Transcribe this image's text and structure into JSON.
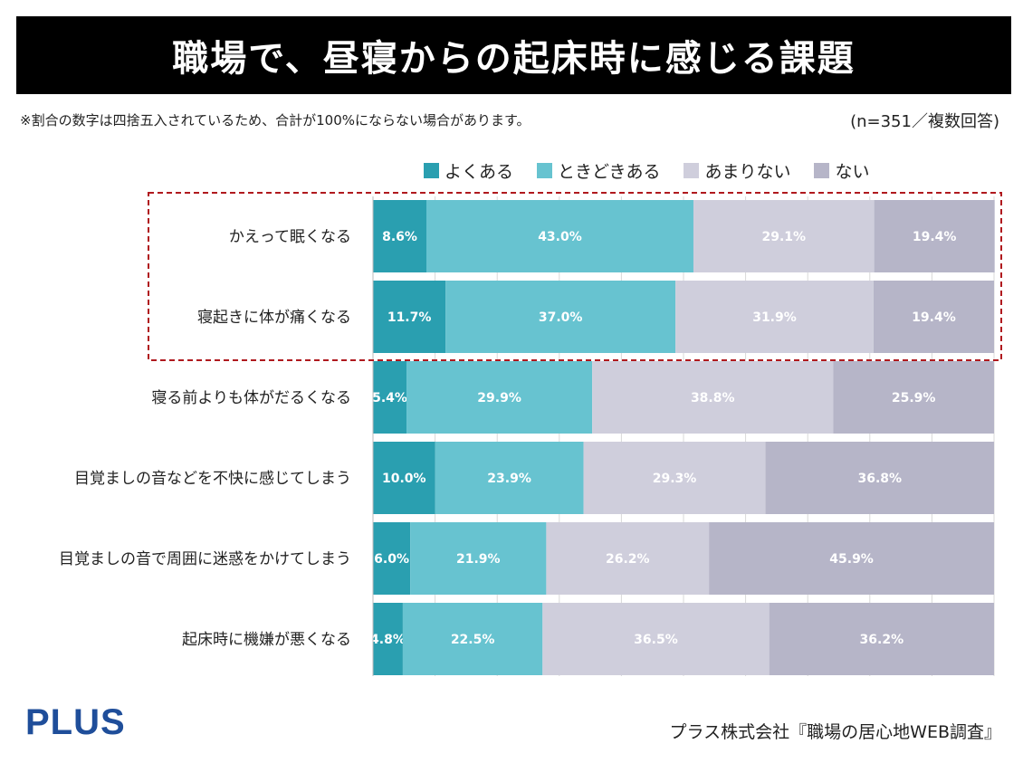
{
  "title": "職場で、昼寝からの起床時に感じる課題",
  "note": "※割合の数字は四捨五入されているため、合計が100%にならない場合があります。",
  "sample": "(n=351／複数回答)",
  "logo": "PLUS",
  "source": "プラス株式会社『職場の居心地WEB調査』",
  "colors": {
    "often": "#2a9fb0",
    "sometimes": "#67c3d0",
    "rarely": "#cfcedc",
    "never": "#b6b5c8",
    "highlight": "#b0191e"
  },
  "chart_data": {
    "type": "bar",
    "orientation": "horizontal-stacked-100",
    "categories": [
      "かえって眠くなる",
      "寝起きに体が痛くなる",
      "寝る前よりも体がだるくなる",
      "目覚ましの音などを不快に感じてしまう",
      "目覚ましの音で周囲に迷惑をかけてしまう",
      "起床時に機嫌が悪くなる"
    ],
    "series": [
      {
        "name": "よくある",
        "key": "often",
        "values": [
          8.6,
          11.7,
          5.4,
          10.0,
          6.0,
          4.8
        ]
      },
      {
        "name": "ときどきある",
        "key": "sometimes",
        "values": [
          43.0,
          37.0,
          29.9,
          23.9,
          21.9,
          22.5
        ]
      },
      {
        "name": "あまりない",
        "key": "rarely",
        "values": [
          29.1,
          31.9,
          38.8,
          29.3,
          26.2,
          36.5
        ]
      },
      {
        "name": "ない",
        "key": "never",
        "values": [
          19.4,
          19.4,
          25.9,
          36.8,
          45.9,
          36.2
        ]
      }
    ],
    "xlim": [
      0,
      100
    ],
    "highlighted_categories": [
      0,
      1
    ],
    "legend": "top"
  }
}
